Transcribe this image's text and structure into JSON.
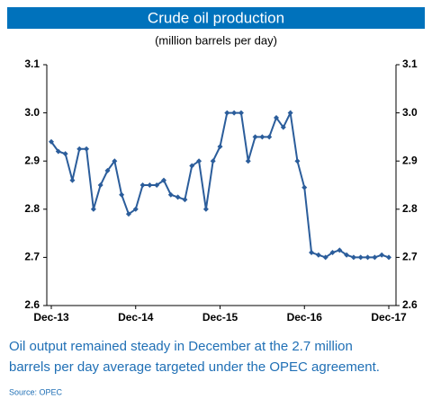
{
  "chart_data": {
    "type": "line",
    "title": "Crude oil production",
    "subtitle": "(million barrels per day)",
    "categories": [
      "Dec-13",
      null,
      null,
      null,
      null,
      null,
      null,
      null,
      null,
      null,
      null,
      null,
      "Dec-14",
      null,
      null,
      null,
      null,
      null,
      null,
      null,
      null,
      null,
      null,
      null,
      "Dec-15",
      null,
      null,
      null,
      null,
      null,
      null,
      null,
      null,
      null,
      null,
      null,
      "Dec-16",
      null,
      null,
      null,
      null,
      null,
      null,
      null,
      null,
      null,
      null,
      null,
      "Dec-17"
    ],
    "series": [
      {
        "name": "Crude oil production",
        "color": "#2b5d9b",
        "values": [
          2.94,
          2.92,
          2.915,
          2.86,
          2.925,
          2.925,
          2.8,
          2.85,
          2.88,
          2.9,
          2.83,
          2.79,
          2.8,
          2.85,
          2.85,
          2.85,
          2.86,
          2.83,
          2.825,
          2.82,
          2.89,
          2.9,
          2.8,
          2.9,
          2.93,
          3.0,
          3.0,
          3.0,
          2.9,
          2.95,
          2.95,
          2.95,
          2.99,
          2.97,
          3.0,
          2.9,
          2.845,
          2.71,
          2.705,
          2.7,
          2.71,
          2.715,
          2.705,
          2.7,
          2.7,
          2.7,
          2.7,
          2.705,
          2.7
        ]
      }
    ],
    "ylim": [
      2.6,
      3.1
    ],
    "yticks": [
      {
        "value": 2.6,
        "label": "2.6"
      },
      {
        "value": 2.7,
        "label": "2.7"
      },
      {
        "value": 2.8,
        "label": "2.8"
      },
      {
        "value": 2.9,
        "label": "2.9"
      },
      {
        "value": 3.0,
        "label": "3.0"
      },
      {
        "value": 3.1,
        "label": "3.1"
      }
    ],
    "y2lim": [
      2.6,
      3.1
    ],
    "y2ticks": [
      {
        "value": 2.6,
        "label": "2.6"
      },
      {
        "value": 2.7,
        "label": "2.7"
      },
      {
        "value": 2.8,
        "label": "2.8"
      },
      {
        "value": 2.9,
        "label": "2.9"
      },
      {
        "value": 3.0,
        "label": "3.0"
      },
      {
        "value": 3.1,
        "label": "3.1"
      }
    ],
    "grid": false,
    "caption": [
      "Oil output remained steady in December at the 2.7 million",
      "barrels per day average targeted under the OPEC agreement."
    ],
    "source": "Source: OPEC"
  }
}
